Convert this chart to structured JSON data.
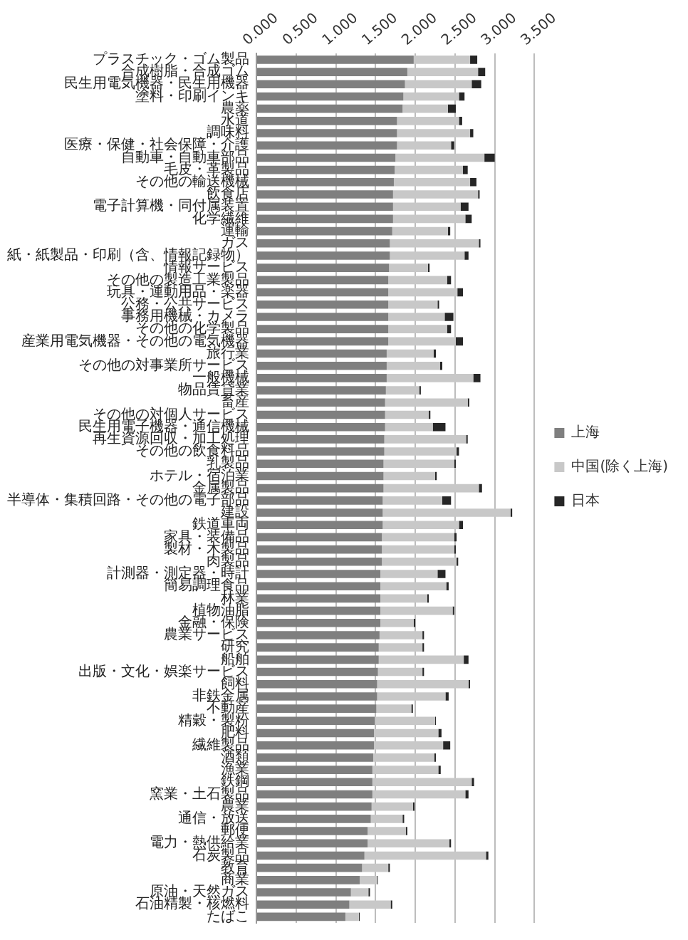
{
  "chart_data": {
    "type": "bar",
    "orientation": "horizontal",
    "stacked": true,
    "legend": "right",
    "grid": "x",
    "categories": [
      "プラスチック・ゴム製品",
      "合成樹脂・合成ゴム",
      "民生用電気機器・民生用機器",
      "塗料・印刷インキ",
      "農薬",
      "水道",
      "調味料",
      "医療・保健・社会保障・介護",
      "自動車・自動車部品",
      "毛皮・革製品",
      "その他の輸送機械",
      "飲食店",
      "電子計算機・同付属装置",
      "化学繊維",
      "運輸",
      "ガス",
      "紙・紙製品・印刷（含、情報記録物）",
      "情報サービス",
      "その他の製造工業製品",
      "玩具・運動用品・楽器",
      "公務・公共サービス",
      "事務用機械・カメラ",
      "その他の化学製品",
      "産業用電気機器・その他の電気機器",
      "旅行業",
      "その他の対事業所サービス",
      "一般機械",
      "物品賃貸業",
      "畜産",
      "その他の対個人サービス",
      "民生用電子機器・通信機械",
      "再生資源回収・加工処理",
      "その他の飲食料品",
      "乳製品",
      "ホテル・宿泊業",
      "金属製品",
      "半導体・集積回路・その他の電子部品",
      "建設",
      "鉄道車両",
      "家具・装備品",
      "製材・木製品",
      "肉製品",
      "計測器・測定器・時計",
      "簡易調理食品",
      "林業",
      "植物油脂",
      "金融・保険",
      "農業サービス",
      "研究",
      "船舶",
      "出版・文化・娯楽サービス",
      "飼料",
      "非鉄金属",
      "不動産",
      "精穀・製粉",
      "肥料",
      "繊維製品",
      "酒類",
      "漁業",
      "鉄鋼",
      "窯業・土石製品",
      "農業",
      "通信・放送",
      "郵便",
      "電力・熱供給業",
      "石炭製品",
      "教育",
      "商業",
      "原油・天然ガス",
      "石油精製・核燃料",
      "たばこ"
    ],
    "series": [
      {
        "name": "上海",
        "color": "#7f7f7f",
        "values": [
          1.98,
          1.9,
          1.87,
          1.85,
          1.84,
          1.77,
          1.77,
          1.77,
          1.75,
          1.74,
          1.73,
          1.72,
          1.72,
          1.72,
          1.71,
          1.68,
          1.68,
          1.67,
          1.66,
          1.66,
          1.66,
          1.66,
          1.66,
          1.66,
          1.64,
          1.64,
          1.64,
          1.63,
          1.62,
          1.62,
          1.62,
          1.61,
          1.61,
          1.6,
          1.6,
          1.6,
          1.59,
          1.59,
          1.59,
          1.58,
          1.58,
          1.58,
          1.56,
          1.56,
          1.56,
          1.56,
          1.56,
          1.55,
          1.54,
          1.54,
          1.53,
          1.52,
          1.52,
          1.51,
          1.49,
          1.48,
          1.48,
          1.47,
          1.46,
          1.46,
          1.46,
          1.45,
          1.44,
          1.4,
          1.4,
          1.36,
          1.33,
          1.3,
          1.19,
          1.17,
          1.12
        ]
      },
      {
        "name": "中国(除く上海)",
        "color": "#c8c8c8",
        "values": [
          0.71,
          0.89,
          0.84,
          0.7,
          0.57,
          0.78,
          0.92,
          0.68,
          1.12,
          0.86,
          0.96,
          1.07,
          0.85,
          0.91,
          0.7,
          1.12,
          0.94,
          0.49,
          0.74,
          0.87,
          0.62,
          0.71,
          0.74,
          0.85,
          0.59,
          0.67,
          1.09,
          0.42,
          1.04,
          0.55,
          0.6,
          1.03,
          0.91,
          0.89,
          0.65,
          1.2,
          0.75,
          1.61,
          0.96,
          0.91,
          0.91,
          0.94,
          0.72,
          0.83,
          0.59,
          0.91,
          0.42,
          0.54,
          0.55,
          1.07,
          0.56,
          1.15,
          0.86,
          0.44,
          0.76,
          0.81,
          0.87,
          0.77,
          0.83,
          1.25,
          1.17,
          0.52,
          0.4,
          0.48,
          1.03,
          1.53,
          0.33,
          0.22,
          0.22,
          0.52,
          0.17
        ]
      },
      {
        "name": "日本",
        "color": "#262626",
        "values": [
          0.09,
          0.09,
          0.12,
          0.07,
          0.1,
          0.04,
          0.04,
          0.04,
          0.13,
          0.06,
          0.08,
          0.02,
          0.1,
          0.08,
          0.03,
          0.02,
          0.05,
          0.02,
          0.05,
          0.07,
          0.02,
          0.11,
          0.05,
          0.09,
          0.03,
          0.03,
          0.09,
          0.02,
          0.02,
          0.02,
          0.16,
          0.02,
          0.03,
          0.02,
          0.02,
          0.04,
          0.11,
          0.02,
          0.05,
          0.03,
          0.02,
          0.02,
          0.1,
          0.03,
          0.02,
          0.02,
          0.02,
          0.02,
          0.02,
          0.06,
          0.02,
          0.02,
          0.04,
          0.02,
          0.01,
          0.04,
          0.09,
          0.02,
          0.03,
          0.03,
          0.04,
          0.02,
          0.02,
          0.02,
          0.02,
          0.03,
          0.02,
          0.01,
          0.02,
          0.02,
          0.01
        ]
      }
    ],
    "xlim": [
      0,
      3.5
    ],
    "xticks": [
      {
        "value": 0,
        "label": "0.000"
      },
      {
        "value": 0.5,
        "label": "0.500"
      },
      {
        "value": 1,
        "label": "1.000"
      },
      {
        "value": 1.5,
        "label": "1.500"
      },
      {
        "value": 2,
        "label": "2.000"
      },
      {
        "value": 2.5,
        "label": "2.500"
      },
      {
        "value": 3,
        "label": "3.000"
      },
      {
        "value": 3.5,
        "label": "3.500"
      }
    ]
  }
}
